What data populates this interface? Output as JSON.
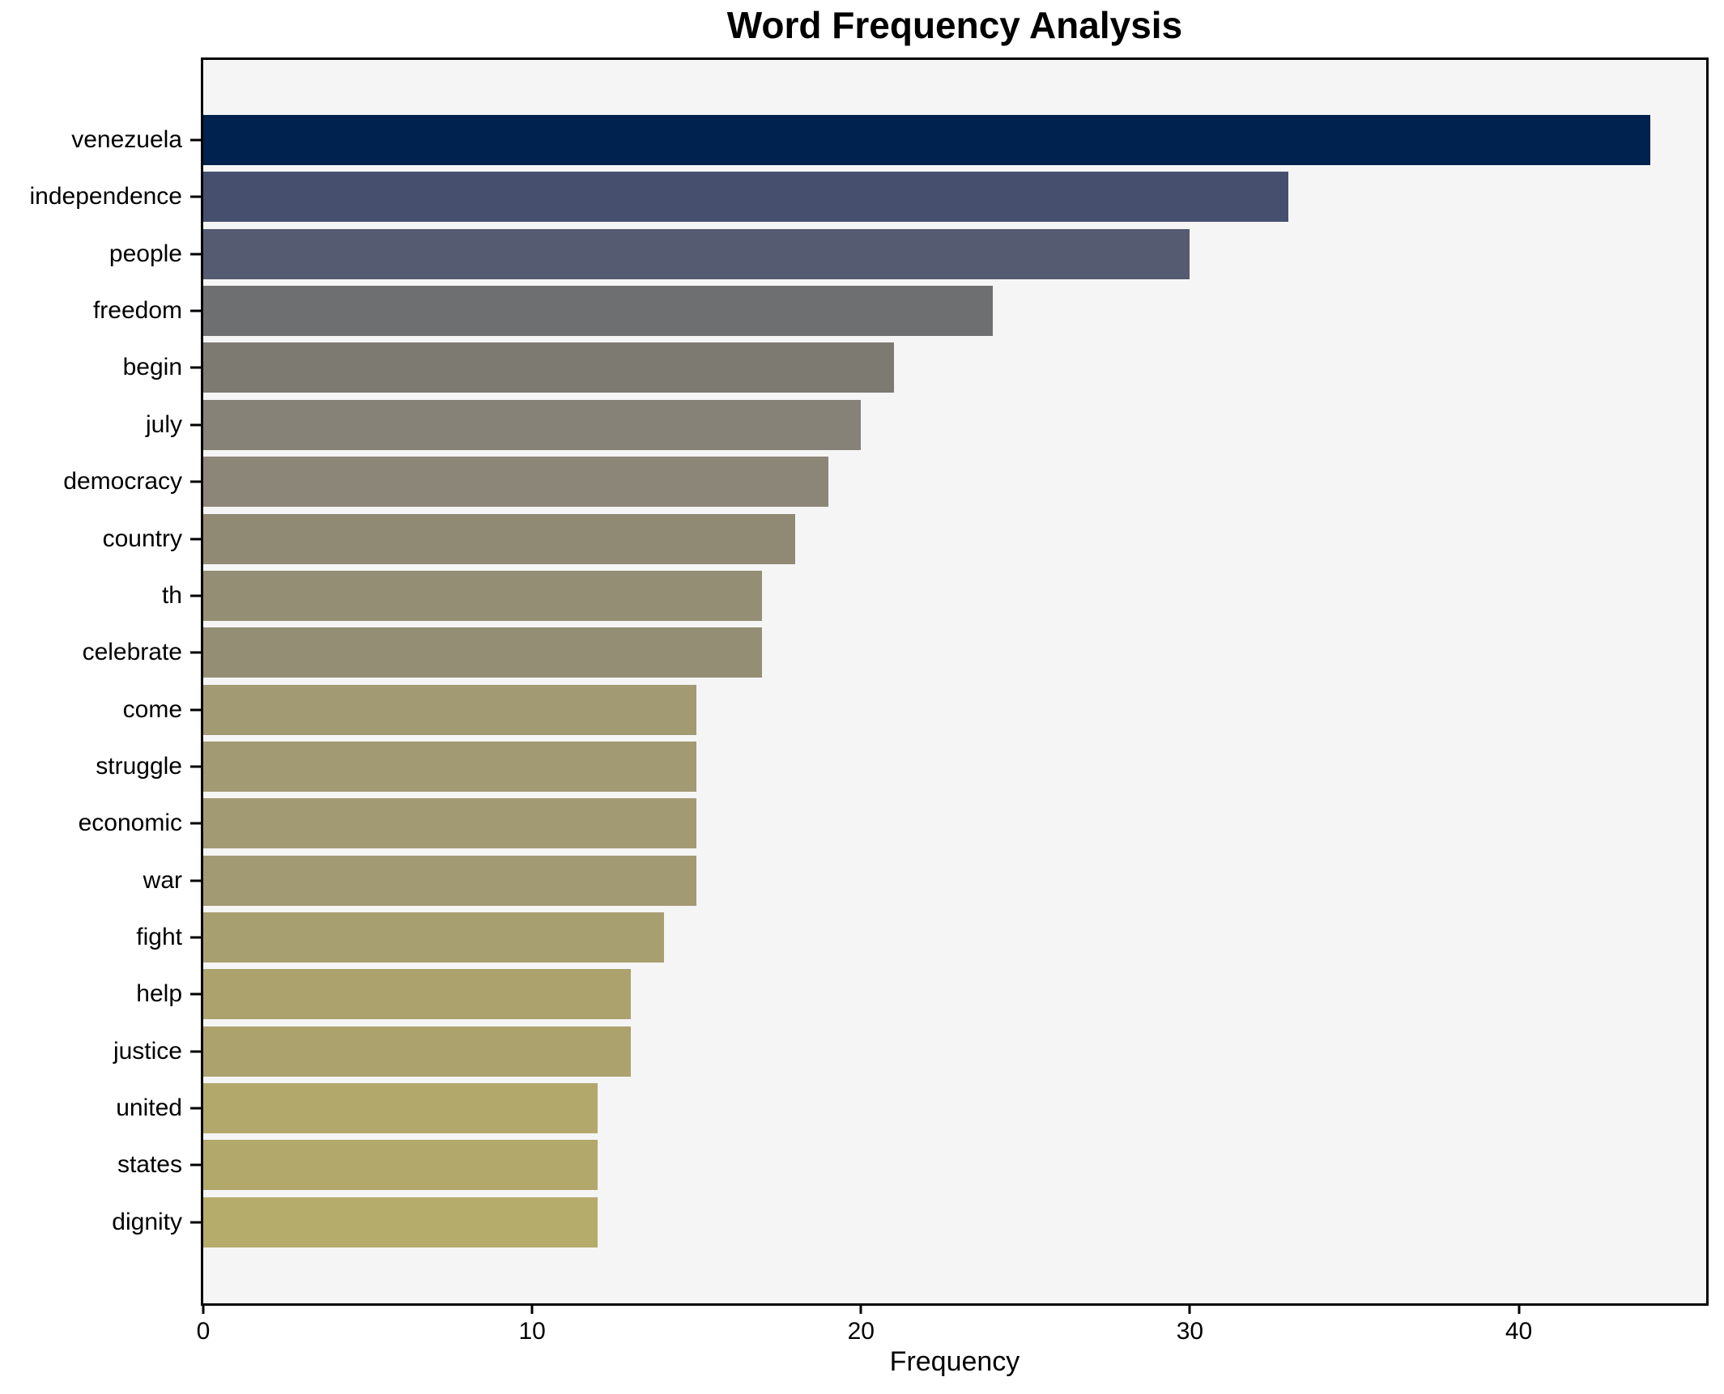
{
  "title": "Word Frequency Analysis",
  "xlabel": "Frequency",
  "colors": {
    "figure_bg": "#ffffff",
    "plot_bg": "#f5f5f6",
    "axis": "#000000",
    "text": "#000000"
  },
  "chart_data": {
    "type": "bar",
    "orientation": "horizontal",
    "title": "Word Frequency Analysis",
    "xlabel": "Frequency",
    "ylabel": "",
    "grid": false,
    "legend": false,
    "xlim": [
      0,
      45.7
    ],
    "x_ticks": [
      0,
      10,
      20,
      30,
      40
    ],
    "categories": [
      "venezuela",
      "independence",
      "people",
      "freedom",
      "begin",
      "july",
      "democracy",
      "country",
      "th",
      "celebrate",
      "come",
      "struggle",
      "economic",
      "war",
      "fight",
      "help",
      "justice",
      "united",
      "states",
      "dignity"
    ],
    "values": [
      44,
      33,
      30,
      24,
      21,
      20,
      19,
      18,
      17,
      17,
      15,
      15,
      15,
      15,
      14,
      13,
      13,
      12,
      12,
      12
    ],
    "bar_colors": [
      "#00224e",
      "#46506e",
      "#555b70",
      "#6e6f71",
      "#7d7a72",
      "#868277",
      "#8b8677",
      "#908a75",
      "#948e74",
      "#948e74",
      "#a29a73",
      "#a29a73",
      "#a29a73",
      "#a29a73",
      "#a89f70",
      "#aba26e",
      "#aba26e",
      "#b2a86b",
      "#b2a86b",
      "#b5ab6a"
    ]
  }
}
